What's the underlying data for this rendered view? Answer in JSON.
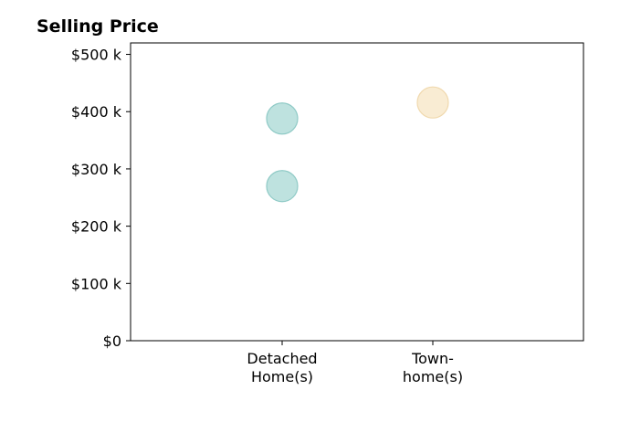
{
  "chart_data": {
    "type": "scatter",
    "title": "Selling Price",
    "xlabel": "",
    "ylabel": "",
    "categories": [
      {
        "line1": "Detached",
        "line2": "Home(s)"
      },
      {
        "line1": "Town-",
        "line2": "home(s)"
      }
    ],
    "ylim": [
      0,
      520000
    ],
    "yticks": [
      0,
      100000,
      200000,
      300000,
      400000,
      500000
    ],
    "ytick_labels": [
      "$0",
      "$100 k",
      "$200 k",
      "$300 k",
      "$400 k",
      "$500 k"
    ],
    "grid": false,
    "points": [
      {
        "category": 0,
        "value": 388000,
        "color": "#a8d8d4",
        "edge": "#8fcac6"
      },
      {
        "category": 0,
        "value": 270000,
        "color": "#a8d8d4",
        "edge": "#8fcac6"
      },
      {
        "category": 1,
        "value": 416000,
        "color": "#f7e6c4",
        "edge": "#f0d9ae"
      }
    ]
  }
}
